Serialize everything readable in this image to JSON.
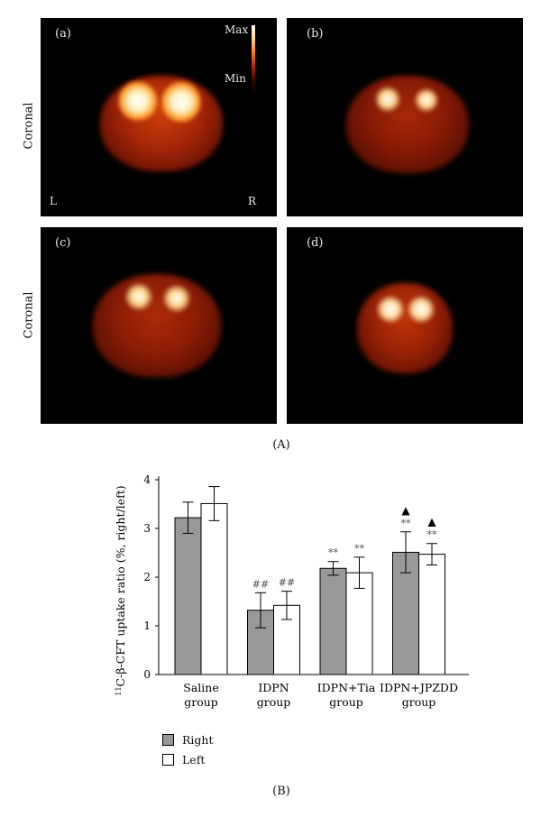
{
  "figure_a": {
    "row_label": "Coronal",
    "caption": "(A)",
    "scale": {
      "max": "Max",
      "min": "Min"
    },
    "orientation": {
      "left": "L",
      "right": "R"
    },
    "panels": [
      {
        "label": "(a)"
      },
      {
        "label": "(b)"
      },
      {
        "label": "(c)"
      },
      {
        "label": "(d)"
      }
    ]
  },
  "figure_b": {
    "caption": "(B)",
    "legend": [
      {
        "name": "Right",
        "color": "#999999"
      },
      {
        "name": "Left",
        "color": "#ffffff"
      }
    ]
  },
  "chart_data": {
    "type": "bar",
    "ylabel": "11C-β-CFT uptake ratio (%, right/left)",
    "ylabel_sup": "11",
    "ylabel_rest": "C-β-CFT uptake ratio (%, right/left)",
    "ylim": [
      0,
      4
    ],
    "yticks": [
      "0",
      "1",
      "2",
      "3",
      "4"
    ],
    "categories": [
      {
        "line1": "Saline",
        "line2": "group"
      },
      {
        "line1": "IDPN",
        "line2": "group"
      },
      {
        "line1": "IDPN+Tia",
        "line2": "group"
      },
      {
        "line1": "IDPN+JPZDD",
        "line2": "group"
      }
    ],
    "series": [
      {
        "name": "Right",
        "color": "#999999",
        "values": [
          3.22,
          1.32,
          2.18,
          2.51
        ],
        "errors": [
          0.32,
          0.36,
          0.14,
          0.42
        ],
        "annotations": [
          [],
          [
            "##"
          ],
          [
            "**"
          ],
          [
            "**",
            "▲"
          ]
        ]
      },
      {
        "name": "Left",
        "color": "#ffffff",
        "values": [
          3.51,
          1.42,
          2.09,
          2.47
        ],
        "errors": [
          0.35,
          0.29,
          0.32,
          0.22
        ],
        "annotations": [
          [],
          [
            "##"
          ],
          [
            "**"
          ],
          [
            "**",
            "▲"
          ]
        ]
      }
    ],
    "legend_position": "bottom-left",
    "grid": false
  }
}
